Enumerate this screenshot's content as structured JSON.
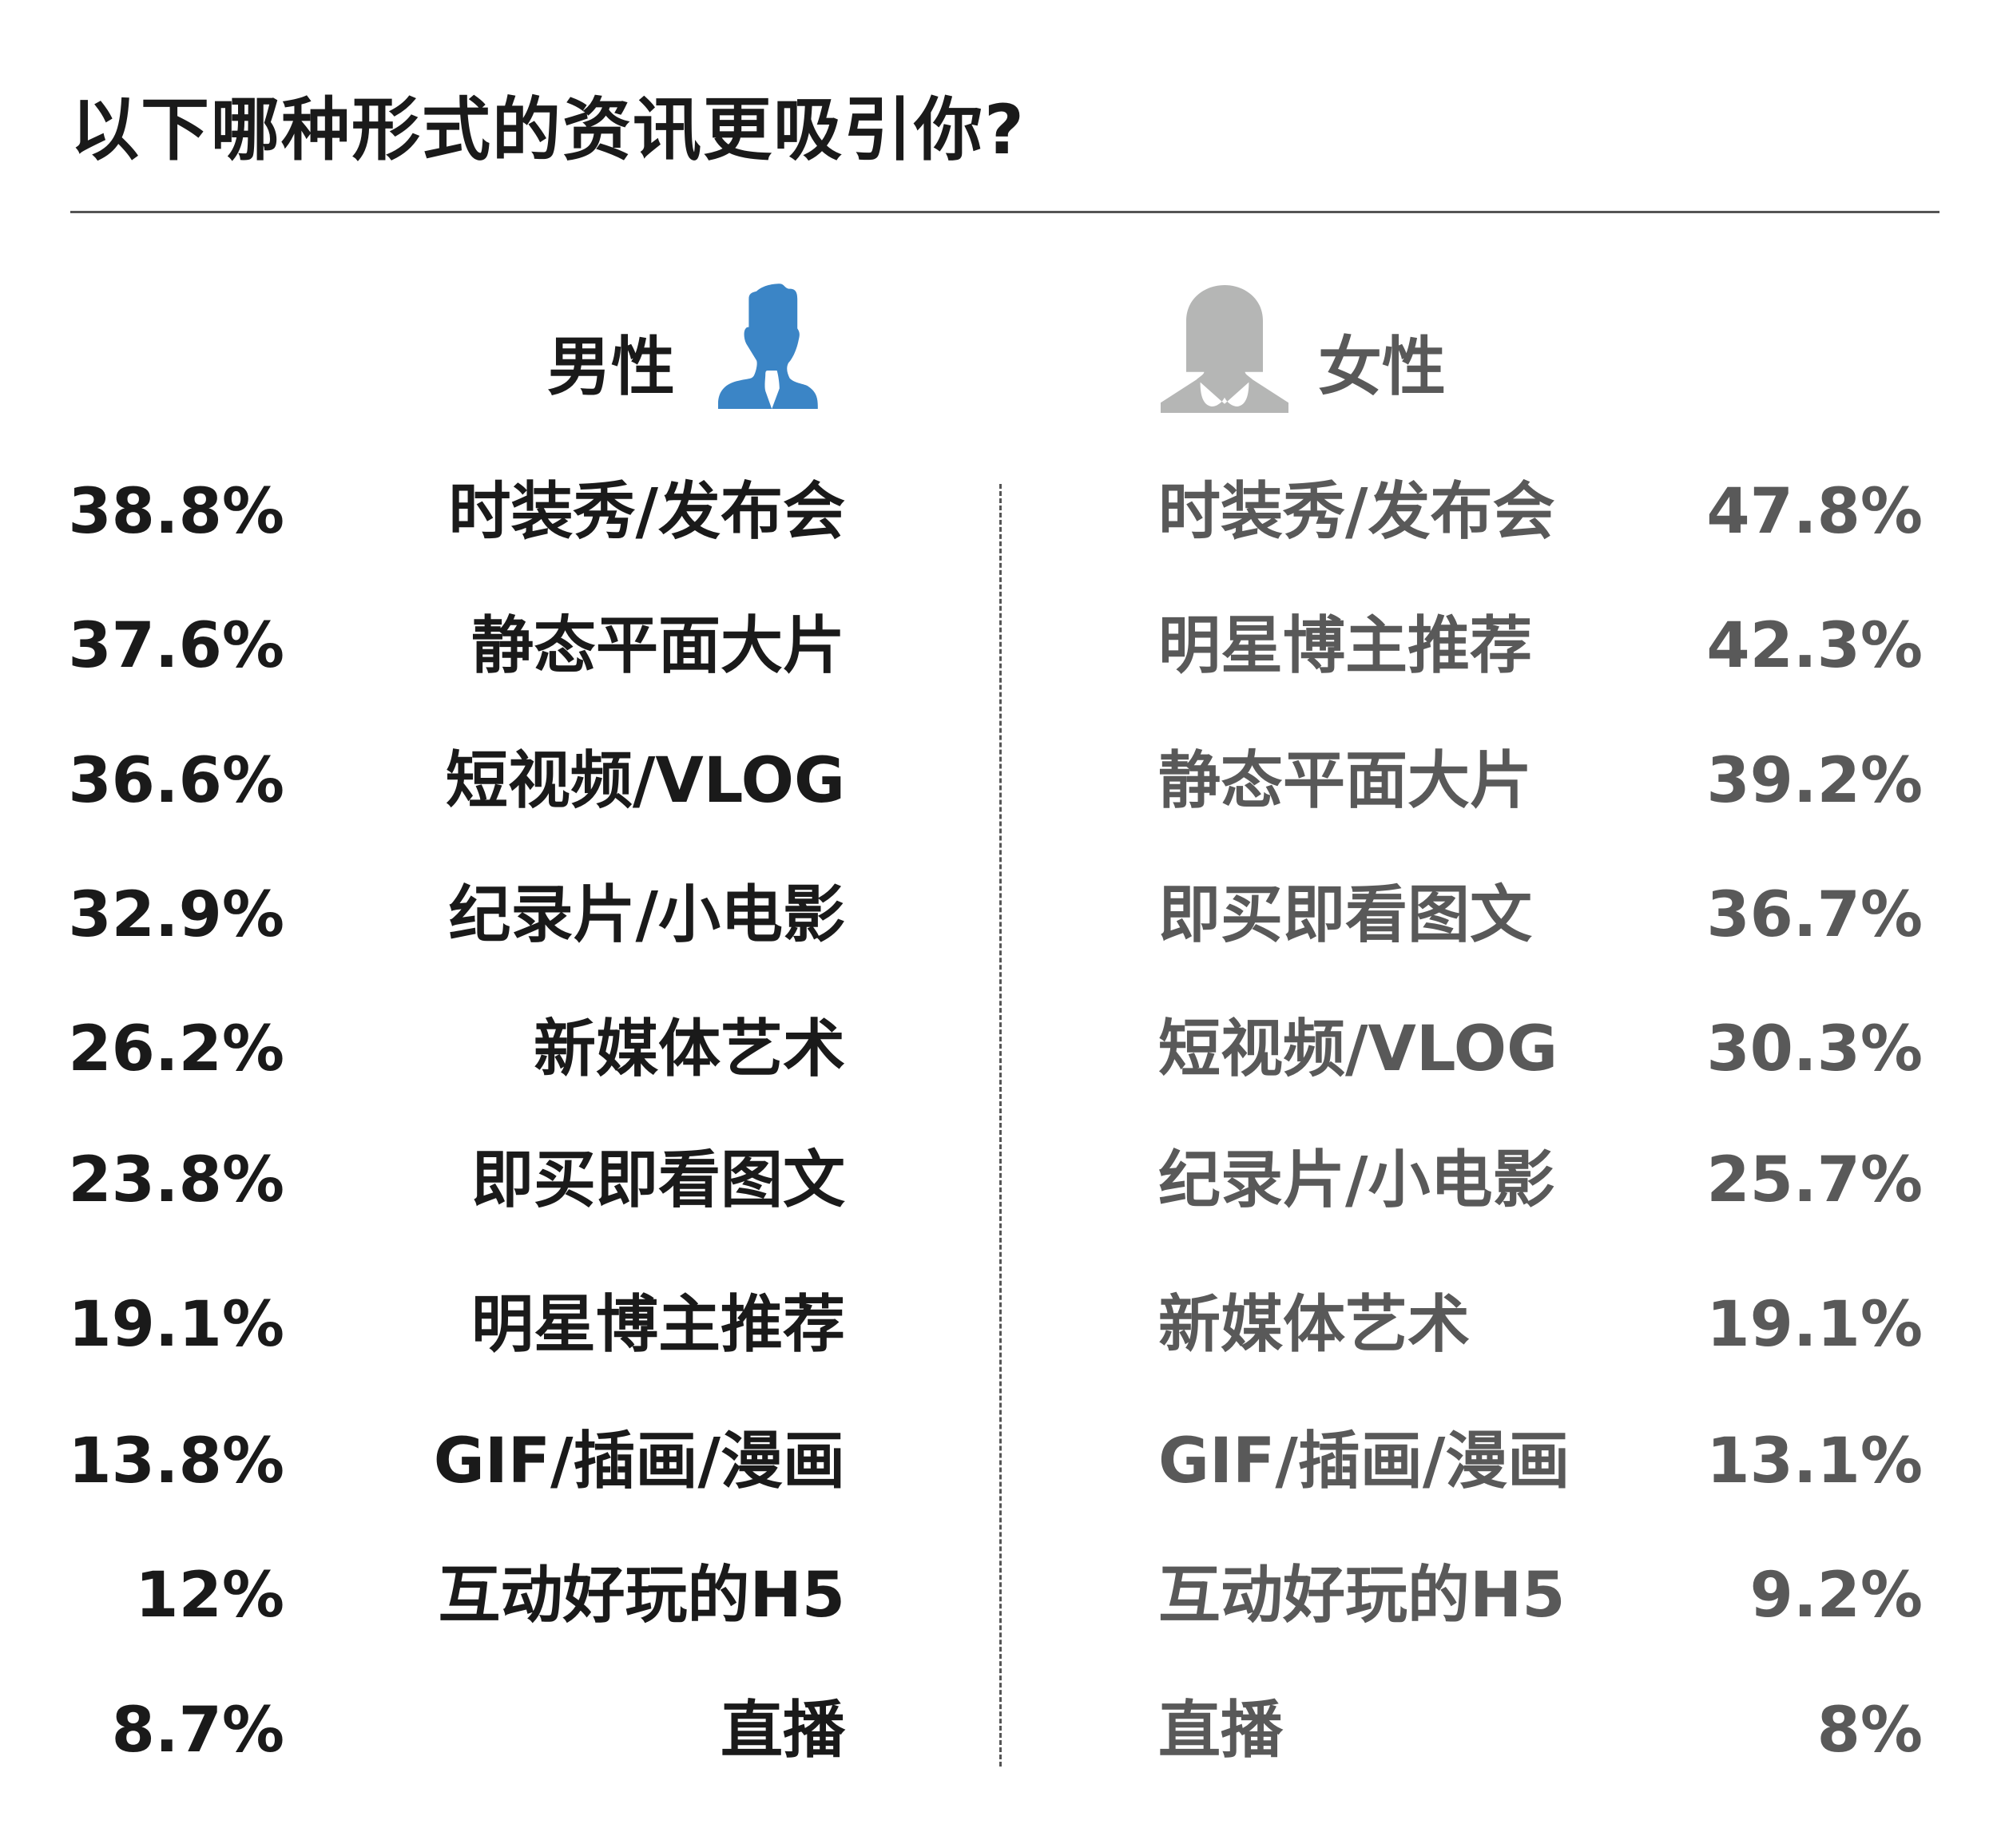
{
  "title": "以下哪种形式的资讯更吸引你?",
  "colors": {
    "male": "#3b85c6",
    "female": "#b5b6b5",
    "male_text": "#1a1a1a",
    "female_text": "#595959"
  },
  "chart_data": {
    "type": "table",
    "title": "以下哪种形式的资讯更吸引你?",
    "series": [
      {
        "name": "男性",
        "icon": "male-person-icon",
        "rows": [
          {
            "label": "时装秀/发布会",
            "value": "38.8%"
          },
          {
            "label": "静态平面大片",
            "value": "37.6%"
          },
          {
            "label": "短视频/VLOG",
            "value": "36.6%"
          },
          {
            "label": "纪录片/小电影",
            "value": "32.9%"
          },
          {
            "label": "新媒体艺术",
            "value": "26.2%"
          },
          {
            "label": "即买即看图文",
            "value": "23.8%"
          },
          {
            "label": "明星博主推荐",
            "value": "19.1%"
          },
          {
            "label": "GIF/插画/漫画",
            "value": "13.8%"
          },
          {
            "label": "互动好玩的H5",
            "value": "12%"
          },
          {
            "label": "直播",
            "value": "8.7%"
          }
        ]
      },
      {
        "name": "女性",
        "icon": "female-person-icon",
        "rows": [
          {
            "label": "时装秀/发布会",
            "value": "47.8%"
          },
          {
            "label": "明星博主推荐",
            "value": "42.3%"
          },
          {
            "label": "静态平面大片",
            "value": "39.2%"
          },
          {
            "label": "即买即看图文",
            "value": "36.7%"
          },
          {
            "label": "短视频/VLOG",
            "value": "30.3%"
          },
          {
            "label": "纪录片/小电影",
            "value": "25.7%"
          },
          {
            "label": "新媒体艺术",
            "value": "19.1%"
          },
          {
            "label": "GIF/插画/漫画",
            "value": "13.1%"
          },
          {
            "label": "互动好玩的H5",
            "value": "9.2%"
          },
          {
            "label": "直播",
            "value": "8%"
          }
        ]
      }
    ]
  }
}
